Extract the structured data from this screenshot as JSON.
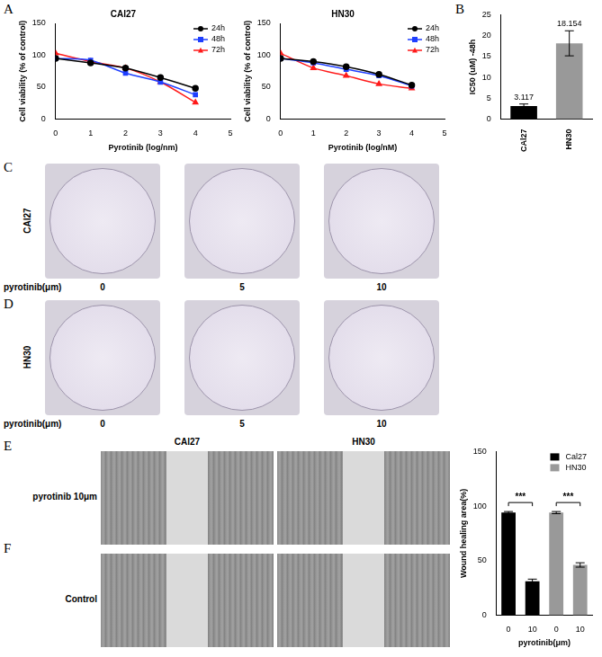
{
  "panels": [
    "A",
    "B",
    "C",
    "D",
    "E",
    "F"
  ],
  "chart_data": [
    {
      "type": "line",
      "title": "CAl27",
      "x_label": "Pyrotinib (log/nm)",
      "y_label": "Cell viability (% of control)",
      "x": [
        0,
        1,
        2,
        3,
        4
      ],
      "series": [
        {
          "name": "24h",
          "color": "#000000",
          "marker": "circle",
          "values": [
            95,
            88,
            80,
            65,
            48
          ]
        },
        {
          "name": "48h",
          "color": "#1f3fff",
          "marker": "square",
          "values": [
            95,
            92,
            72,
            58,
            38
          ]
        },
        {
          "name": "72h",
          "color": "#ff1a1a",
          "marker": "triangle",
          "values": [
            103,
            90,
            80,
            58,
            26
          ]
        }
      ],
      "xlim": [
        0,
        5
      ],
      "xticks": [
        0,
        1,
        2,
        3,
        4,
        5
      ],
      "ylim": [
        0,
        150
      ],
      "yticks": [
        0,
        50,
        100,
        150
      ],
      "grid": false,
      "legend": "upper right"
    },
    {
      "type": "line",
      "title": "HN30",
      "x_label": "Pyrotinib (log/nM)",
      "y_label": "Cell viability (% of control)",
      "x": [
        0,
        1,
        2,
        3,
        4
      ],
      "series": [
        {
          "name": "24h",
          "color": "#000000",
          "marker": "circle",
          "values": [
            95,
            90,
            82,
            70,
            53
          ]
        },
        {
          "name": "48h",
          "color": "#1f3fff",
          "marker": "square",
          "values": [
            95,
            88,
            78,
            68,
            52
          ]
        },
        {
          "name": "72h",
          "color": "#ff1a1a",
          "marker": "triangle",
          "values": [
            103,
            80,
            68,
            55,
            48
          ]
        }
      ],
      "xlim": [
        0,
        5
      ],
      "xticks": [
        0,
        1,
        2,
        3,
        4,
        5
      ],
      "ylim": [
        0,
        150
      ],
      "yticks": [
        0,
        50,
        100,
        150
      ],
      "grid": false,
      "legend": "upper right"
    },
    {
      "type": "bar",
      "y_label": "IC50 (uM) -48h",
      "categories": [
        "CAl27",
        "HN30"
      ],
      "values": [
        3.117,
        18.154
      ],
      "errors": [
        0.5,
        3
      ],
      "colors": [
        "#000000",
        "#999999"
      ],
      "ylim": [
        0,
        25
      ],
      "yticks": [
        0,
        5,
        10,
        15,
        20,
        25
      ],
      "data_labels": true,
      "grid": false
    },
    {
      "type": "bar",
      "x_label": "pyrotinib(μm)",
      "y_label": "Wound healing area(%)",
      "categories": [
        "0",
        "10",
        "0",
        "10"
      ],
      "series": [
        {
          "name": "Cal27",
          "color": "#000000",
          "values": [
            94,
            31,
            null,
            null
          ],
          "errors": [
            1,
            2,
            null,
            null
          ]
        },
        {
          "name": "HN30",
          "color": "#999999",
          "values": [
            null,
            null,
            94,
            46
          ],
          "errors": [
            null,
            null,
            1,
            2
          ]
        }
      ],
      "ylim": [
        0,
        150
      ],
      "yticks": [
        0,
        50,
        100,
        150
      ],
      "grid": false,
      "legend": "upper right",
      "annotations": [
        {
          "text": "***",
          "from": 0,
          "to": 1
        },
        {
          "text": "***",
          "from": 2,
          "to": 3
        }
      ]
    }
  ],
  "colony_assay": {
    "rows": [
      "CAl27",
      "HN30"
    ],
    "dose_label": "pyrotinib(μm)",
    "doses": [
      "0",
      "5",
      "10"
    ]
  },
  "wound_assay": {
    "columns": [
      "CAl27",
      "HN30"
    ],
    "rows": [
      "pyrotinib 10μm",
      "Control"
    ]
  }
}
